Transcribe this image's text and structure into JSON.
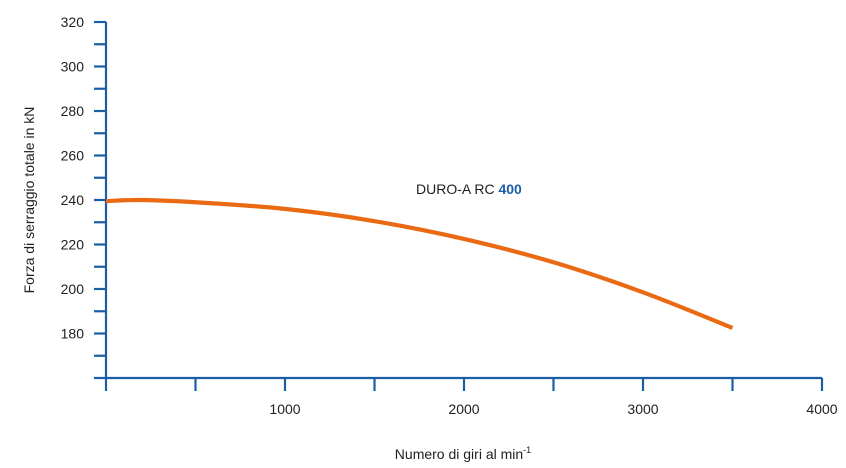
{
  "chart_data": {
    "type": "line",
    "title": "",
    "xlabel": "Numero di giri al min",
    "xlabel_superscript": "-1",
    "ylabel": "Forza di serraggio totale in kN",
    "xlim": [
      0,
      4000
    ],
    "ylim": [
      160,
      320
    ],
    "x_ticks": [
      1000,
      2000,
      3000,
      4000
    ],
    "x_tick_labels": [
      "1000",
      "2000",
      "3000",
      "4000"
    ],
    "x_minor_ticks": [
      500,
      1500,
      2500,
      3500
    ],
    "y_ticks": [
      180,
      200,
      220,
      240,
      260,
      280,
      300,
      320
    ],
    "y_tick_labels": [
      "180",
      "200",
      "220",
      "240",
      "260",
      "280",
      "300",
      "320"
    ],
    "y_minor_ticks": [
      170,
      190,
      210,
      230,
      250,
      270,
      290,
      310
    ],
    "grid": false,
    "legend": "none",
    "series": [
      {
        "label_prefix": "DURO-A RC ",
        "label_number": "400",
        "color": "#ea6a14",
        "x": [
          0,
          200,
          500,
          1000,
          1500,
          2000,
          2500,
          3000,
          3500
        ],
        "y": [
          239.5,
          240,
          239,
          236,
          230.5,
          222.5,
          212,
          198.5,
          182.5
        ]
      }
    ],
    "colors": {
      "axis": "#1a5ea8",
      "series_line": "#ea6a14",
      "label_accent": "#1a5ea8"
    }
  }
}
